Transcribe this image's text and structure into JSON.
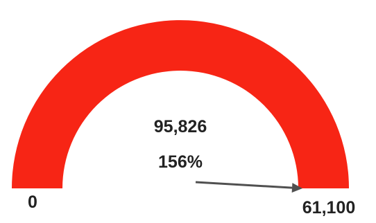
{
  "chart_data": {
    "type": "gauge",
    "value": 95826,
    "value_label": "95,826",
    "percent_label": "156%",
    "min": 0,
    "min_label": "0",
    "max": 61100,
    "max_label": "61,100",
    "percent": 156,
    "colors": {
      "band": "#f72515",
      "needle": "#505050",
      "text": "#222222"
    }
  }
}
